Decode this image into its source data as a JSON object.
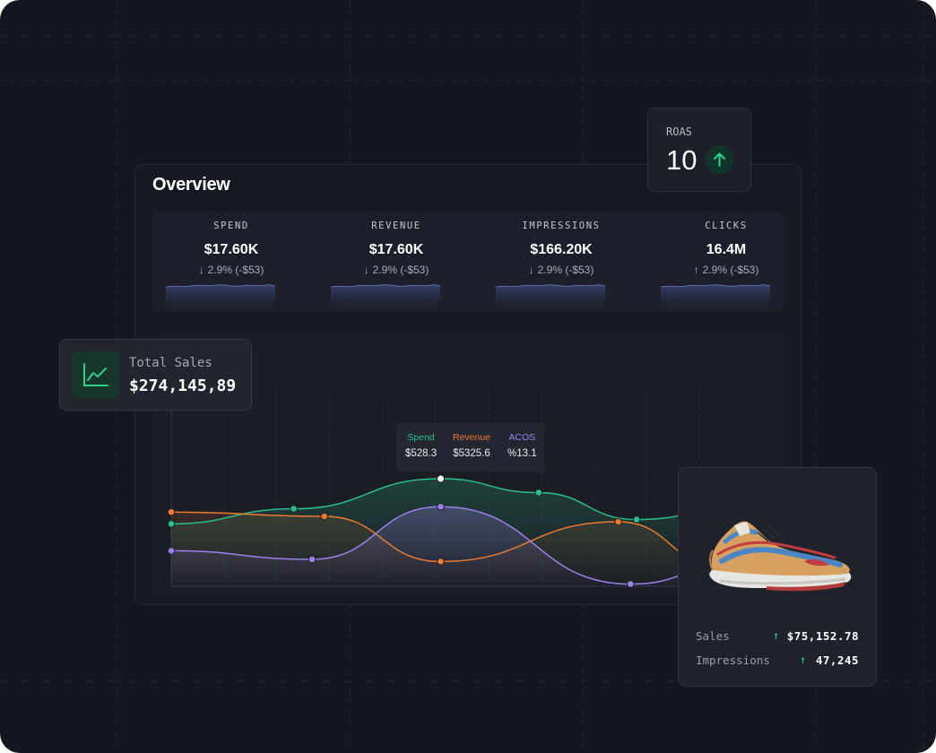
{
  "overview": {
    "title": "Overview",
    "metrics": [
      {
        "label": "SPEND",
        "value": "$17.60K",
        "direction": "down",
        "arrow": "↓",
        "change": "2.9% (-$53)"
      },
      {
        "label": "REVENUE",
        "value": "$17.60K",
        "direction": "down",
        "arrow": "↓",
        "change": "2.9% (-$53)"
      },
      {
        "label": "IMPRESSIONS",
        "value": "$166.20K",
        "direction": "down",
        "arrow": "↓",
        "change": "2.9% (-$53)"
      },
      {
        "label": "CLICKS",
        "value": "16.4M",
        "direction": "up",
        "arrow": "↑",
        "change": "2.9% (-$53)"
      }
    ]
  },
  "roas": {
    "label": "ROAS",
    "value": "10",
    "trend": "up",
    "icon": "arrow-up-icon"
  },
  "total_sales": {
    "label": "Total Sales",
    "value": "$274,145,89",
    "icon": "line-chart-icon"
  },
  "tooltip": {
    "items": [
      {
        "label": "Spend",
        "value": "$528.3",
        "color": "#2bbd8e"
      },
      {
        "label": "Revenue",
        "value": "$5325.6",
        "color": "#ea7a31"
      },
      {
        "label": "ACOS",
        "value": "%13.1",
        "color": "#9b82ea"
      }
    ]
  },
  "chart_data": {
    "type": "line",
    "series": [
      {
        "name": "Spend",
        "color": "#2bbd8e",
        "points": [
          [
            0,
            0.42
          ],
          [
            2,
            0.28
          ],
          [
            4.4,
            0.0
          ],
          [
            6,
            0.13
          ],
          [
            7.6,
            0.38
          ],
          [
            9.3,
            0.27
          ],
          [
            10,
            0.2
          ]
        ]
      },
      {
        "name": "Revenue",
        "color": "#ea7a31",
        "points": [
          [
            0,
            0.31
          ],
          [
            2.5,
            0.35
          ],
          [
            4.4,
            0.77
          ],
          [
            7.3,
            0.4
          ],
          [
            9,
            0.82
          ],
          [
            10,
            0.82
          ]
        ]
      },
      {
        "name": "ACOS",
        "color": "#9b82ea",
        "points": [
          [
            0,
            0.67
          ],
          [
            2.3,
            0.75
          ],
          [
            4.4,
            0.26
          ],
          [
            7.5,
            0.98
          ],
          [
            9.2,
            0.8
          ],
          [
            10,
            0.7
          ]
        ]
      }
    ],
    "highlight_x": 4.4,
    "grid": true
  },
  "product": {
    "image_icon": "sneaker-icon",
    "rows": [
      {
        "label": "Sales",
        "arrow": "↑",
        "value": "$75,152.78"
      },
      {
        "label": "Impressions",
        "arrow": "↑",
        "value": "47,245"
      }
    ]
  },
  "colors": {
    "background": "#141720",
    "panel": "#161922",
    "accent_green": "#2fd08d",
    "spend": "#2bbd8e",
    "revenue": "#ea7a31",
    "acos": "#9b82ea"
  }
}
